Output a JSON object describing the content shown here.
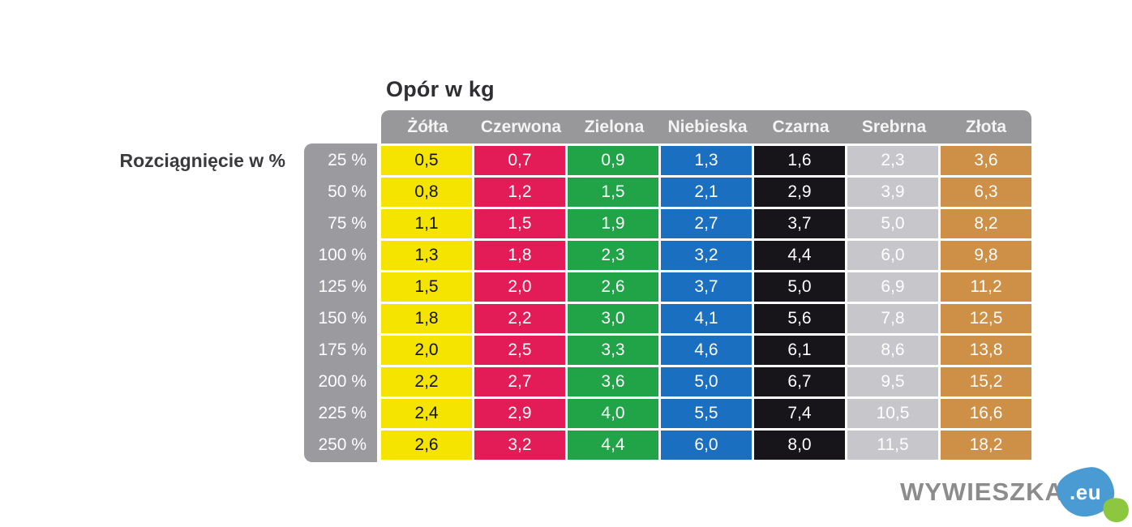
{
  "title": "Opór w kg",
  "row_axis_label": "Rozciągnięcie w %",
  "chart_data": {
    "type": "table",
    "title": "Opór w kg",
    "row_axis_label": "Rozciągnięcie w %",
    "columns": [
      "Żółta",
      "Czerwona",
      "Zielona",
      "Niebieska",
      "Czarna",
      "Srebrna",
      "Złota"
    ],
    "column_colors": [
      "#f5e400",
      "#e31b57",
      "#21a348",
      "#1b6fc0",
      "#17151a",
      "#c7c7cb",
      "#ce8f47"
    ],
    "column_text_colors": [
      "#111111",
      "#ffffff",
      "#ffffff",
      "#ffffff",
      "#ffffff",
      "#ffffff",
      "#ffffff"
    ],
    "row_labels": [
      "25 %",
      "50 %",
      "75 %",
      "100 %",
      "125 %",
      "150 %",
      "175 %",
      "200 %",
      "225 %",
      "250 %"
    ],
    "cells": [
      [
        "0,5",
        "0,7",
        "0,9",
        "1,3",
        "1,6",
        "2,3",
        "3,6"
      ],
      [
        "0,8",
        "1,2",
        "1,5",
        "2,1",
        "2,9",
        "3,9",
        "6,3"
      ],
      [
        "1,1",
        "1,5",
        "1,9",
        "2,7",
        "3,7",
        "5,0",
        "8,2"
      ],
      [
        "1,3",
        "1,8",
        "2,3",
        "3,2",
        "4,4",
        "6,0",
        "9,8"
      ],
      [
        "1,5",
        "2,0",
        "2,6",
        "3,7",
        "5,0",
        "6,9",
        "11,2"
      ],
      [
        "1,8",
        "2,2",
        "3,0",
        "4,1",
        "5,6",
        "7,8",
        "12,5"
      ],
      [
        "2,0",
        "2,5",
        "3,3",
        "4,6",
        "6,1",
        "8,6",
        "13,8"
      ],
      [
        "2,2",
        "2,7",
        "3,6",
        "5,0",
        "6,7",
        "9,5",
        "15,2"
      ],
      [
        "2,4",
        "2,9",
        "4,0",
        "5,5",
        "7,4",
        "10,5",
        "16,6"
      ],
      [
        "2,6",
        "3,2",
        "4,4",
        "6,0",
        "8,0",
        "11,5",
        "18,2"
      ]
    ],
    "values": [
      [
        0.5,
        0.7,
        0.9,
        1.3,
        1.6,
        2.3,
        3.6
      ],
      [
        0.8,
        1.2,
        1.5,
        2.1,
        2.9,
        3.9,
        6.3
      ],
      [
        1.1,
        1.5,
        1.9,
        2.7,
        3.7,
        5.0,
        8.2
      ],
      [
        1.3,
        1.8,
        2.3,
        3.2,
        4.4,
        6.0,
        9.8
      ],
      [
        1.5,
        2.0,
        2.6,
        3.7,
        5.0,
        6.9,
        11.2
      ],
      [
        1.8,
        2.2,
        3.0,
        4.1,
        5.6,
        7.8,
        12.5
      ],
      [
        2.0,
        2.5,
        3.3,
        4.6,
        6.1,
        8.6,
        13.8
      ],
      [
        2.2,
        2.7,
        3.6,
        5.0,
        6.7,
        9.5,
        15.2
      ],
      [
        2.4,
        2.9,
        4.0,
        5.5,
        7.4,
        10.5,
        16.6
      ],
      [
        2.6,
        3.2,
        4.4,
        6.0,
        8.0,
        11.5,
        18.2
      ]
    ]
  },
  "colors": {
    "background": "#ffffff",
    "header_gray": "#989799",
    "row_header_gray": "#9b9a9f",
    "title_text": "#2f2e33",
    "header_text": "#f4f4f4"
  },
  "watermark": {
    "brand": "WYWIESZKA",
    "suffix": ".eu",
    "brand_color": "#8c8c8c",
    "blue": "#4a9bd4",
    "green": "#8dc63f"
  }
}
